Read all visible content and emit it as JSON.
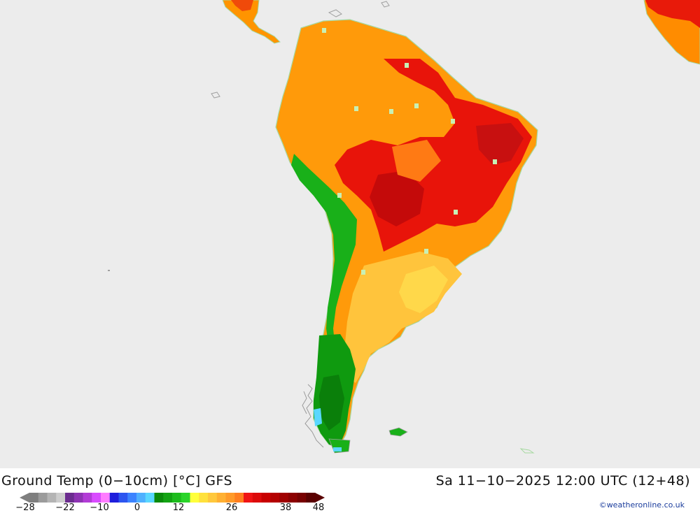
{
  "header": {
    "title": "Ground Temp (0−10cm) [°C] GFS",
    "datetime": "Sa 11−10−2025 12:00 UTC (12+48)"
  },
  "legend": {
    "ticks": [
      "−28",
      "−22",
      "−10",
      "0",
      "12",
      "26",
      "38",
      "48"
    ],
    "colors": [
      "#7f7f7f",
      "#9b9b9b",
      "#b4b4b4",
      "#cdcdcd",
      "#6b2c8f",
      "#8e33b3",
      "#b23bd6",
      "#d94bff",
      "#ff7cff",
      "#1e1edc",
      "#2c55f0",
      "#3c83ff",
      "#4fb0ff",
      "#5ad7ff",
      "#0a8a0a",
      "#13a313",
      "#1dbc1d",
      "#2ad42a",
      "#ffff3c",
      "#ffe13c",
      "#ffc83c",
      "#ffb032",
      "#ff9a28",
      "#ff7e1e",
      "#f01414",
      "#dc0a0a",
      "#c80000",
      "#b40000",
      "#a00000",
      "#8c0000",
      "#780000",
      "#5a0000"
    ]
  },
  "credit": "©weatheronline.co.uk"
}
